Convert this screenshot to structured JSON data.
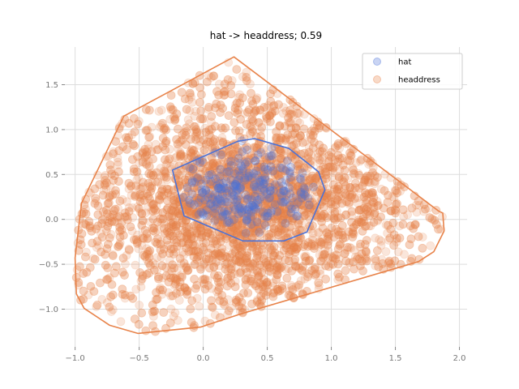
{
  "chart_data": {
    "type": "scatter",
    "title": "hat -> headdress; 0.59",
    "xlabel": "",
    "ylabel": "",
    "xlim": [
      -1.08,
      2.06
    ],
    "ylim": [
      -1.42,
      1.92
    ],
    "x_ticks": [
      -1.0,
      -0.5,
      0.0,
      0.5,
      1.0,
      1.5,
      2.0
    ],
    "x_tick_labels": [
      "−1.0",
      "−0.5",
      "0.0",
      "0.5",
      "1.0",
      "1.5",
      "2.0"
    ],
    "y_ticks": [
      -1.0,
      -0.5,
      0.0,
      0.5,
      1.0,
      1.5
    ],
    "y_tick_labels": [
      "−1.0",
      "−0.5",
      "0.0",
      "0.5",
      "1.0",
      "1.5"
    ],
    "grid": true,
    "legend_position": "top-right",
    "series": [
      {
        "name": "hat",
        "color": "#4c72d6",
        "point_alpha": 0.25,
        "hull": [
          [
            -0.24,
            0.55
          ],
          [
            0.27,
            0.87
          ],
          [
            0.4,
            0.9
          ],
          [
            0.67,
            0.79
          ],
          [
            0.9,
            0.53
          ],
          [
            0.95,
            0.33
          ],
          [
            0.81,
            -0.14
          ],
          [
            0.63,
            -0.24
          ],
          [
            0.31,
            -0.24
          ],
          [
            -0.15,
            0.04
          ]
        ],
        "cloud": {
          "cx": 0.33,
          "cy": 0.33,
          "sx": 0.25,
          "sy": 0.22,
          "n": 260
        }
      },
      {
        "name": "headdress",
        "color": "#e8834a",
        "point_alpha": 0.2,
        "hull": [
          [
            0.24,
            1.81
          ],
          [
            -0.62,
            1.15
          ],
          [
            -0.95,
            0.18
          ],
          [
            -1.0,
            -0.43
          ],
          [
            -0.99,
            -0.83
          ],
          [
            -0.93,
            -0.99
          ],
          [
            -0.73,
            -1.18
          ],
          [
            -0.51,
            -1.27
          ],
          [
            -0.02,
            -1.2
          ],
          [
            0.3,
            -1.05
          ],
          [
            1.68,
            -0.47
          ],
          [
            1.8,
            -0.36
          ],
          [
            1.88,
            -0.13
          ],
          [
            1.87,
            0.07
          ],
          [
            1.84,
            0.09
          ]
        ],
        "cloud": {
          "cx": 0.35,
          "cy": 0.15,
          "n": 4200
        }
      }
    ]
  }
}
